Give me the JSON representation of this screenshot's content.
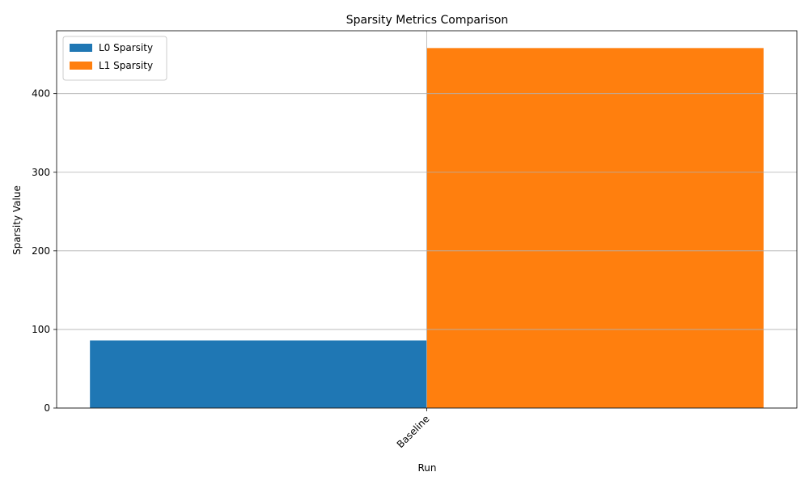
{
  "chart_data": {
    "type": "bar",
    "title": "Sparsity Metrics Comparison",
    "xlabel": "Run",
    "ylabel": "Sparsity Value",
    "categories": [
      "Baseline"
    ],
    "series": [
      {
        "name": "L0 Sparsity",
        "color": "#1f77b4",
        "values": [
          86
        ]
      },
      {
        "name": "L1 Sparsity",
        "color": "#ff7f0e",
        "values": [
          458
        ]
      }
    ],
    "ylim": [
      0,
      480
    ],
    "yticks": [
      0,
      100,
      200,
      300,
      400
    ],
    "grid": true,
    "legend_position": "top-left",
    "xtick_rotation": 45
  }
}
